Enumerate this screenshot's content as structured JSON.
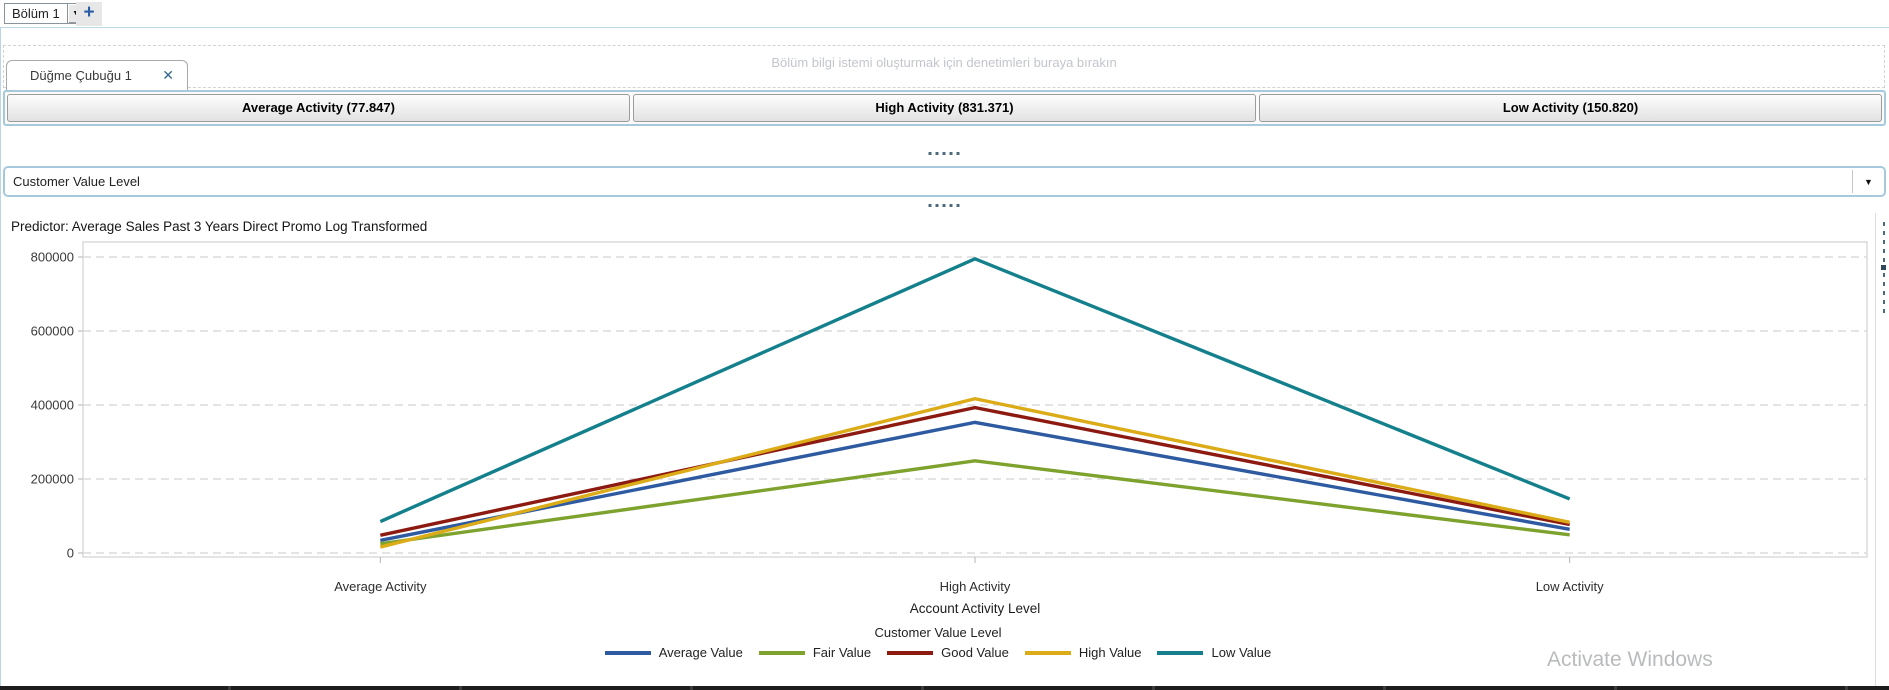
{
  "icons": {
    "dropdown_arrow": "▼",
    "close": "✕",
    "add": "+"
  },
  "top_bar": {
    "section_selector_value": "Bölüm 1"
  },
  "drop_zone": {
    "hint": "Bölüm bilgi istemi oluşturmak için denetimleri buraya bırakın"
  },
  "tab_bar": {
    "tabs": [
      {
        "label": "Düğme Çubuğu 1"
      }
    ]
  },
  "button_bar": {
    "buttons": [
      {
        "label": "Average Activity (77.847)"
      },
      {
        "label": "High Activity (831.371)"
      },
      {
        "label": "Low Activity (150.820)"
      }
    ]
  },
  "filter_dropdown": {
    "value": "Customer Value Level"
  },
  "chart_data": {
    "type": "line",
    "title": "Predictor: Average Sales Past 3 Years Direct Promo Log Transformed",
    "categories": [
      "Average Activity",
      "High Activity",
      "Low Activity"
    ],
    "series": [
      {
        "name": "Average Value",
        "color": "#2d5aa0",
        "values": [
          34000,
          353000,
          64000
        ]
      },
      {
        "name": "Fair Value",
        "color": "#7ea22e",
        "values": [
          25000,
          249000,
          49000
        ]
      },
      {
        "name": "Good Value",
        "color": "#8c1a10",
        "values": [
          48000,
          393000,
          77000
        ]
      },
      {
        "name": "High Value",
        "color": "#dcab18",
        "values": [
          16000,
          417000,
          83000
        ]
      },
      {
        "name": "Low Value",
        "color": "#13808c",
        "values": [
          85000,
          795000,
          146000
        ]
      }
    ],
    "xlabel": "Account Activity Level",
    "ylabel": "",
    "legend_title": "Customer Value Level",
    "legend_position": "bottom",
    "ylim": [
      0,
      800000
    ],
    "yticks": [
      0,
      200000,
      400000,
      600000,
      800000
    ],
    "grid": "horizontal-dashed"
  },
  "watermark": "Activate Windows",
  "colors": {
    "accent_border": "#a6cadc",
    "close_icon": "#33688f",
    "add_icon": "#2a5ca8"
  }
}
